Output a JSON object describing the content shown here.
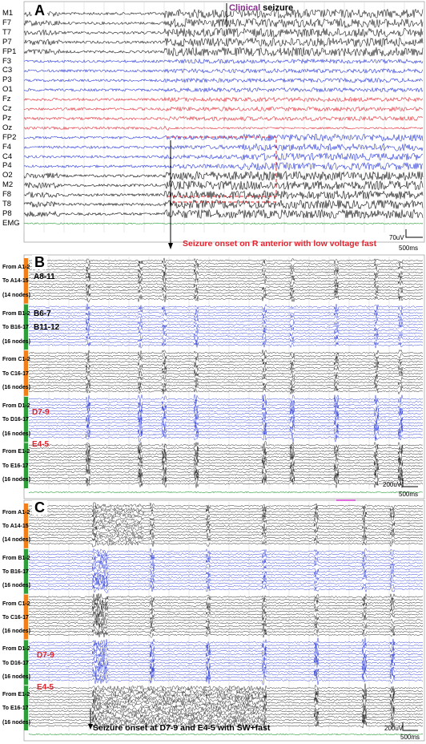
{
  "panelA": {
    "label": "A",
    "channels": [
      "M1",
      "F7",
      "T7",
      "P7",
      "FP1",
      "F3",
      "C3",
      "P3",
      "O1",
      "Fz",
      "Cz",
      "Pz",
      "Oz",
      "FP2",
      "F4",
      "C4",
      "P4",
      "O2",
      "M2",
      "F8",
      "T8",
      "P8",
      "EMG"
    ],
    "channel_colors": [
      "black",
      "black",
      "black",
      "black",
      "black",
      "blue",
      "blue",
      "blue",
      "blue",
      "red",
      "red",
      "red",
      "red",
      "blue",
      "blue",
      "blue",
      "blue",
      "black",
      "black",
      "black",
      "black",
      "black",
      "green"
    ],
    "clinical_prefix": "Clinical",
    "clinical_suffix": " seizure",
    "onset_note": "Seizure onset on R anterior with low voltage fast",
    "scale_amp": "70uV",
    "scale_time": "500ms"
  },
  "panelB": {
    "label": "B",
    "groups": [
      {
        "from": "From A1-2",
        "to": "To A14-15",
        "nodes": "(14 nodes)",
        "color": "orange"
      },
      {
        "from": "From B1-2",
        "to": "To B16-17",
        "nodes": "(16 nodes)",
        "color": "green"
      },
      {
        "from": "From C1-2",
        "to": "To C16-17",
        "nodes": "(16 nodes)",
        "color": "orange"
      },
      {
        "from": "From D1-2",
        "to": "To D16-17",
        "nodes": "(16 nodes)",
        "color": "green"
      },
      {
        "from": "From E1-2",
        "to": "To E16-17",
        "nodes": "(16 nodes)",
        "color": "green"
      }
    ],
    "annot_a": "A8-11",
    "annot_b1": "B6-7",
    "annot_b2": "B11-12",
    "annot_d": "D7-9",
    "annot_e": "E4-5",
    "scale_amp": "200uV",
    "scale_time": "500ms"
  },
  "panelC": {
    "label": "C",
    "groups": [
      {
        "from": "From A1-2",
        "to": "To A14-15",
        "nodes": "(14 nodes)",
        "color": "orange"
      },
      {
        "from": "From B1-2",
        "to": "To B16-17",
        "nodes": "(16 nodes)",
        "color": "green"
      },
      {
        "from": "From C1-2",
        "to": "To C16-17",
        "nodes": "(16 nodes)",
        "color": "orange"
      },
      {
        "from": "From D1-2",
        "to": "To D16-17",
        "nodes": "(16 nodes)",
        "color": "green"
      },
      {
        "from": "From E1-2",
        "to": "To E16-17",
        "nodes": "(16 nodes)",
        "color": "green"
      }
    ],
    "annot_d": "D7-9",
    "annot_e": "E4-5",
    "onset_note": "Seizure onset at D7-9 and E4-5 with SW+fast",
    "scale_amp": "200uV",
    "scale_time": "500ms"
  },
  "colors": {
    "black": "#111111",
    "blue": "#1f2fd6",
    "red": "#e4212c",
    "green": "#2e9e3a",
    "orange": "#f07f1a",
    "purple": "#8a2b8f",
    "magenta": "#d63bd6"
  }
}
